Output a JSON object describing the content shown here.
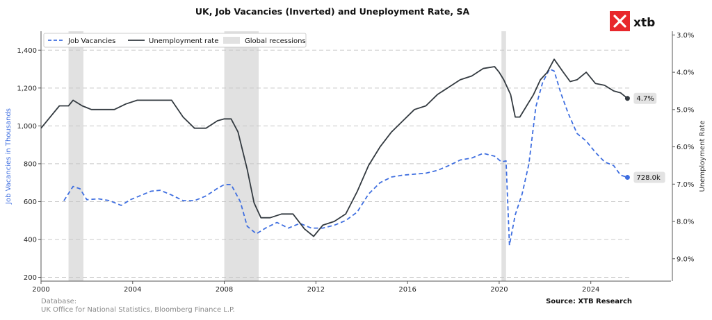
{
  "chart_data": {
    "type": "line",
    "title": "UK, Job Vacancies (Inverted) and Uneployment Rate, SA",
    "ylabel_left": "Job Vacancies in Thousands",
    "ylabel_right": "Unemployment Rate",
    "xlim": [
      2000,
      2025.8
    ],
    "ylim_left": [
      180,
      1500
    ],
    "ylim_right_inverted": [
      2.9,
      9.6
    ],
    "x_ticks": [
      "2000",
      "2004",
      "2008",
      "2012",
      "2016",
      "2020",
      "2024"
    ],
    "x_tick_values": [
      2000,
      2004,
      2008,
      2012,
      2016,
      2020,
      2024
    ],
    "y_left_ticks": [
      "200",
      "400",
      "600",
      "800",
      "1,000",
      "1,200",
      "1,400"
    ],
    "y_left_tick_values": [
      200,
      400,
      600,
      800,
      1000,
      1200,
      1400
    ],
    "y_right_ticks": [
      "3.0%",
      "4.0%",
      "5.0%",
      "6.0%",
      "7.0%",
      "8.0%",
      "9.0%"
    ],
    "y_right_tick_values": [
      3,
      4,
      5,
      6,
      7,
      8,
      9
    ],
    "grid": "horizontal dashed",
    "legend_position": "top-left",
    "legend": {
      "vacancies": "Job Vacancies",
      "unemployment": "Unemployment rate",
      "recessions": "Global recessions"
    },
    "recessions": [
      [
        2001.2,
        2001.85
      ],
      [
        2008.0,
        2009.5
      ],
      [
        2020.1,
        2020.3
      ]
    ],
    "series": [
      {
        "name": "Job Vacancies",
        "axis": "left",
        "color": "#3e6ee0",
        "style": "dashed",
        "x": [
          2001.0,
          2001.4,
          2001.7,
          2002.0,
          2002.5,
          2003.0,
          2003.5,
          2003.9,
          2004.3,
          2004.8,
          2005.2,
          2005.7,
          2006.2,
          2006.7,
          2007.2,
          2007.7,
          2008.0,
          2008.3,
          2008.7,
          2009.0,
          2009.4,
          2009.8,
          2010.3,
          2010.8,
          2011.3,
          2011.8,
          2012.3,
          2012.8,
          2013.3,
          2013.8,
          2014.3,
          2014.8,
          2015.3,
          2015.8,
          2016.3,
          2016.8,
          2017.3,
          2017.8,
          2018.3,
          2018.8,
          2019.3,
          2019.8,
          2020.1,
          2020.3,
          2020.45,
          2020.7,
          2021.0,
          2021.3,
          2021.6,
          2021.9,
          2022.2,
          2022.4,
          2022.7,
          2023.0,
          2023.4,
          2023.8,
          2024.2,
          2024.6,
          2025.0,
          2025.3,
          2025.6
        ],
        "values": [
          605,
          680,
          668,
          610,
          615,
          605,
          580,
          610,
          630,
          655,
          660,
          635,
          605,
          605,
          630,
          670,
          690,
          690,
          600,
          470,
          430,
          460,
          490,
          460,
          485,
          460,
          460,
          475,
          500,
          545,
          640,
          700,
          730,
          740,
          745,
          750,
          765,
          790,
          820,
          830,
          855,
          840,
          810,
          815,
          370,
          530,
          640,
          800,
          1100,
          1230,
          1300,
          1290,
          1170,
          1070,
          960,
          920,
          860,
          810,
          790,
          740,
          728
        ]
      },
      {
        "name": "Unemployment rate",
        "axis": "right",
        "color": "#333a40",
        "style": "solid",
        "x": [
          2000.0,
          2000.4,
          2000.8,
          2001.2,
          2001.4,
          2001.8,
          2002.2,
          2002.7,
          2003.2,
          2003.7,
          2004.2,
          2004.7,
          2005.2,
          2005.7,
          2006.2,
          2006.7,
          2007.2,
          2007.7,
          2008.0,
          2008.3,
          2008.6,
          2009.0,
          2009.3,
          2009.6,
          2010.0,
          2010.5,
          2011.0,
          2011.5,
          2011.9,
          2012.3,
          2012.8,
          2013.3,
          2013.8,
          2014.3,
          2014.8,
          2015.3,
          2015.8,
          2016.3,
          2016.8,
          2017.3,
          2017.8,
          2018.3,
          2018.8,
          2019.3,
          2019.8,
          2020.0,
          2020.2,
          2020.5,
          2020.7,
          2020.9,
          2021.2,
          2021.5,
          2021.8,
          2022.1,
          2022.4,
          2022.8,
          2023.1,
          2023.4,
          2023.8,
          2024.2,
          2024.6,
          2025.0,
          2025.3,
          2025.6
        ],
        "values": [
          5.5,
          5.2,
          4.9,
          4.9,
          4.75,
          4.9,
          5.0,
          5.0,
          5.0,
          4.85,
          4.75,
          4.75,
          4.75,
          4.75,
          5.2,
          5.5,
          5.5,
          5.3,
          5.25,
          5.25,
          5.6,
          6.6,
          7.5,
          7.9,
          7.9,
          7.8,
          7.8,
          8.2,
          8.4,
          8.1,
          8.0,
          7.8,
          7.2,
          6.5,
          6.0,
          5.6,
          5.3,
          5.0,
          4.9,
          4.6,
          4.4,
          4.2,
          4.1,
          3.9,
          3.85,
          4.0,
          4.2,
          4.6,
          5.2,
          5.2,
          4.9,
          4.6,
          4.2,
          4.0,
          3.65,
          4.0,
          4.25,
          4.2,
          4.0,
          4.3,
          4.35,
          4.5,
          4.55,
          4.7
        ]
      }
    ],
    "end_labels": {
      "unemployment": "4.7%",
      "vacancies": "728.0k"
    }
  },
  "footer": {
    "database_label": "Database:",
    "database_value": "UK Office for National Statistics, Bloomberg Finance L.P.",
    "source": "Source: XTB Research"
  },
  "logo": {
    "text": "xtb",
    "color": "#e8272c"
  }
}
